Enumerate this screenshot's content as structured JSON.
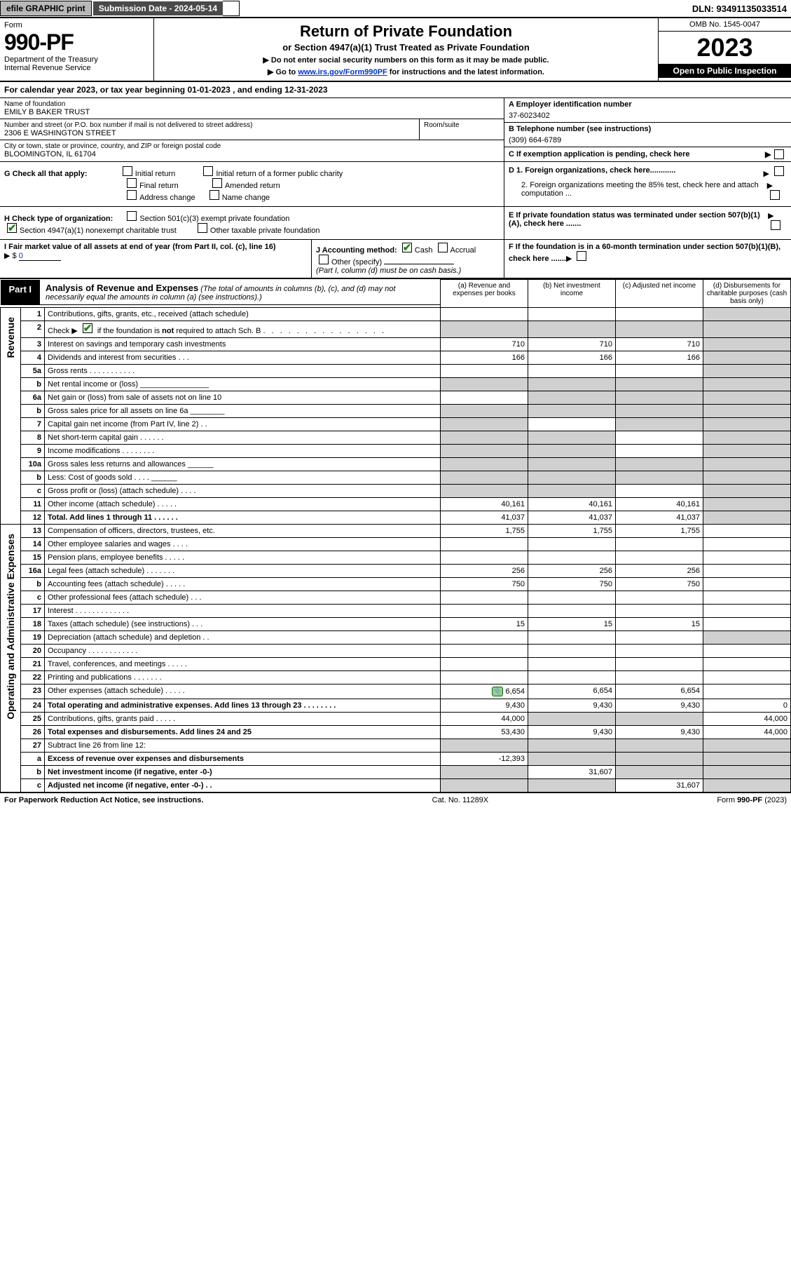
{
  "topbar": {
    "efile_label": "efile GRAPHIC print",
    "submission_label": "Submission Date - 2024-05-14",
    "dln": "DLN: 93491135033514"
  },
  "header": {
    "form_word": "Form",
    "form_number": "990-PF",
    "dept": "Department of the Treasury",
    "irs": "Internal Revenue Service",
    "title": "Return of Private Foundation",
    "subtitle": "or Section 4947(a)(1) Trust Treated as Private Foundation",
    "instr1": "▶ Do not enter social security numbers on this form as it may be made public.",
    "instr2_pre": "▶ Go to ",
    "instr2_link": "www.irs.gov/Form990PF",
    "instr2_post": " for instructions and the latest information.",
    "omb": "OMB No. 1545-0047",
    "year": "2023",
    "open_public": "Open to Public Inspection"
  },
  "calyear": "For calendar year 2023, or tax year beginning 01-01-2023                          , and ending 12-31-2023",
  "entity": {
    "name_lbl": "Name of foundation",
    "name_val": "EMILY B BAKER TRUST",
    "addr_lbl": "Number and street (or P.O. box number if mail is not delivered to street address)",
    "addr_val": "2306 E WASHINGTON STREET",
    "room_lbl": "Room/suite",
    "city_lbl": "City or town, state or province, country, and ZIP or foreign postal code",
    "city_val": "BLOOMINGTON, IL  61704",
    "a_lbl": "A Employer identification number",
    "a_val": "37-6023402",
    "b_lbl": "B Telephone number (see instructions)",
    "b_val": "(309) 664-6789",
    "c_lbl": "C If exemption application is pending, check here"
  },
  "g": {
    "label": "G Check all that apply:",
    "opts": {
      "initial": "Initial return",
      "initial_former": "Initial return of a former public charity",
      "final": "Final return",
      "amended": "Amended return",
      "address": "Address change",
      "name": "Name change"
    }
  },
  "d": {
    "d1": "D 1. Foreign organizations, check here............",
    "d2": "2. Foreign organizations meeting the 85% test, check here and attach computation ..."
  },
  "h": {
    "label": "H Check type of organization:",
    "opt1": "Section 501(c)(3) exempt private foundation",
    "opt2": "Section 4947(a)(1) nonexempt charitable trust",
    "opt3": "Other taxable private foundation"
  },
  "e": "E  If private foundation status was terminated under section 507(b)(1)(A), check here .......",
  "i": {
    "label": "I Fair market value of all assets at end of year (from Part II, col. (c), line 16)",
    "prefix": "▶ $",
    "value": "0"
  },
  "j": {
    "label": "J Accounting method:",
    "cash": "Cash",
    "accrual": "Accrual",
    "other": "Other (specify)",
    "note": "(Part I, column (d) must be on cash basis.)"
  },
  "f": "F  If the foundation is in a 60-month termination under section 507(b)(1)(B), check here .......",
  "part1": {
    "label": "Part I",
    "title": "Analysis of Revenue and Expenses",
    "title_note": "(The total of amounts in columns (b), (c), and (d) may not necessarily equal the amounts in column (a) (see instructions).)",
    "cols": {
      "a": "(a)   Revenue and expenses per books",
      "b": "(b)   Net investment income",
      "c": "(c)   Adjusted net income",
      "d": "(d)   Disbursements for charitable purposes (cash basis only)"
    },
    "side_rev": "Revenue",
    "side_exp": "Operating and Administrative Expenses"
  },
  "rows": [
    {
      "n": "1",
      "desc": "Contributions, gifts, grants, etc., received (attach schedule)",
      "a": "",
      "b": "",
      "c": "",
      "d": "",
      "shade_d": true
    },
    {
      "n": "2",
      "desc": "Check ▶ ☑ if the foundation is not required to attach Sch. B   .   .   .   .   .   .   .   .   .   .   .   .   .   .   .",
      "a": "s",
      "b": "s",
      "c": "s",
      "d": "s"
    },
    {
      "n": "3",
      "desc": "Interest on savings and temporary cash investments",
      "a": "710",
      "b": "710",
      "c": "710",
      "d": "",
      "shade_d": true
    },
    {
      "n": "4",
      "desc": "Dividends and interest from securities   .   .   .",
      "a": "166",
      "b": "166",
      "c": "166",
      "d": "",
      "shade_d": true
    },
    {
      "n": "5a",
      "desc": "Gross rents   .   .   .   .   .   .   .   .   .   .   .",
      "a": "",
      "b": "",
      "c": "",
      "d": "",
      "shade_d": true
    },
    {
      "n": "b",
      "desc": "Net rental income or (loss)  ________________",
      "a": "s",
      "b": "s",
      "c": "s",
      "d": "s"
    },
    {
      "n": "6a",
      "desc": "Net gain or (loss) from sale of assets not on line 10",
      "a": "",
      "b": "s",
      "c": "s",
      "d": "s",
      "shade_bcd": true
    },
    {
      "n": "b",
      "desc": "Gross sales price for all assets on line 6a ________",
      "a": "s",
      "b": "s",
      "c": "s",
      "d": "s"
    },
    {
      "n": "7",
      "desc": "Capital gain net income (from Part IV, line 2)   .   .",
      "a": "s",
      "b": "",
      "c": "s",
      "d": "s",
      "shade_a": true,
      "shade_cd": true
    },
    {
      "n": "8",
      "desc": "Net short-term capital gain   .   .   .   .   .   .",
      "a": "s",
      "b": "s",
      "c": "",
      "d": "s",
      "shade_ab": true,
      "shade_d": true
    },
    {
      "n": "9",
      "desc": "Income modifications   .   .   .   .   .   .   .   .",
      "a": "s",
      "b": "s",
      "c": "",
      "d": "s",
      "shade_ab": true,
      "shade_d": true
    },
    {
      "n": "10a",
      "desc": "Gross sales less returns and allowances   ______",
      "a": "s",
      "b": "s",
      "c": "s",
      "d": "s"
    },
    {
      "n": "b",
      "desc": "Less: Cost of goods sold   .   .   .   .   ______",
      "a": "s",
      "b": "s",
      "c": "s",
      "d": "s"
    },
    {
      "n": "c",
      "desc": "Gross profit or (loss) (attach schedule)   .   .   .   .",
      "a": "s",
      "b": "s",
      "c": "",
      "d": "s",
      "shade_ab": true,
      "shade_d": true
    },
    {
      "n": "11",
      "desc": "Other income (attach schedule)   .   .   .   .   .",
      "a": "40,161",
      "b": "40,161",
      "c": "40,161",
      "d": "",
      "shade_d": true
    },
    {
      "n": "12",
      "desc": "Total. Add lines 1 through 11   .   .   .   .   .   .",
      "bold": true,
      "a": "41,037",
      "b": "41,037",
      "c": "41,037",
      "d": "",
      "shade_d": true
    },
    {
      "n": "13",
      "desc": "Compensation of officers, directors, trustees, etc.",
      "a": "1,755",
      "b": "1,755",
      "c": "1,755",
      "d": ""
    },
    {
      "n": "14",
      "desc": "Other employee salaries and wages   .   .   .   .",
      "a": "",
      "b": "",
      "c": "",
      "d": ""
    },
    {
      "n": "15",
      "desc": "Pension plans, employee benefits   .   .   .   .   .",
      "a": "",
      "b": "",
      "c": "",
      "d": ""
    },
    {
      "n": "16a",
      "desc": "Legal fees (attach schedule)   .   .   .   .   .   .   .",
      "a": "256",
      "b": "256",
      "c": "256",
      "d": ""
    },
    {
      "n": "b",
      "desc": "Accounting fees (attach schedule)   .   .   .   .   .",
      "a": "750",
      "b": "750",
      "c": "750",
      "d": ""
    },
    {
      "n": "c",
      "desc": "Other professional fees (attach schedule)   .   .   .",
      "a": "",
      "b": "",
      "c": "",
      "d": ""
    },
    {
      "n": "17",
      "desc": "Interest   .   .   .   .   .   .   .   .   .   .   .   .   .",
      "a": "",
      "b": "",
      "c": "",
      "d": ""
    },
    {
      "n": "18",
      "desc": "Taxes (attach schedule) (see instructions)   .   .   .",
      "a": "15",
      "b": "15",
      "c": "15",
      "d": ""
    },
    {
      "n": "19",
      "desc": "Depreciation (attach schedule) and depletion   .   .",
      "a": "",
      "b": "",
      "c": "",
      "d": "",
      "shade_d": true
    },
    {
      "n": "20",
      "desc": "Occupancy   .   .   .   .   .   .   .   .   .   .   .   .",
      "a": "",
      "b": "",
      "c": "",
      "d": ""
    },
    {
      "n": "21",
      "desc": "Travel, conferences, and meetings   .   .   .   .   .",
      "a": "",
      "b": "",
      "c": "",
      "d": ""
    },
    {
      "n": "22",
      "desc": "Printing and publications   .   .   .   .   .   .   .",
      "a": "",
      "b": "",
      "c": "",
      "d": ""
    },
    {
      "n": "23",
      "desc": "Other expenses (attach schedule)   .   .   .   .   .",
      "icon": true,
      "a": "6,654",
      "b": "6,654",
      "c": "6,654",
      "d": ""
    },
    {
      "n": "24",
      "desc": "Total operating and administrative expenses. Add lines 13 through 23   .   .   .   .   .   .   .   .",
      "bold": true,
      "a": "9,430",
      "b": "9,430",
      "c": "9,430",
      "d": "0"
    },
    {
      "n": "25",
      "desc": "Contributions, gifts, grants paid   .   .   .   .   .",
      "a": "44,000",
      "b": "",
      "c": "",
      "d": "44,000",
      "shade_bc": true
    },
    {
      "n": "26",
      "desc": "Total expenses and disbursements. Add lines 24 and 25",
      "bold": true,
      "a": "53,430",
      "b": "9,430",
      "c": "9,430",
      "d": "44,000"
    },
    {
      "n": "27",
      "desc": "Subtract line 26 from line 12:",
      "a": "s",
      "b": "s",
      "c": "s",
      "d": "s",
      "shade_all": true
    },
    {
      "n": "a",
      "desc": "Excess of revenue over expenses and disbursements",
      "bold": true,
      "a": "-12,393",
      "b": "",
      "c": "",
      "d": "",
      "shade_bcd": true
    },
    {
      "n": "b",
      "desc": "Net investment income (if negative, enter -0-)",
      "bold": true,
      "a": "",
      "b": "31,607",
      "c": "",
      "d": "",
      "shade_a": true,
      "shade_cd": true
    },
    {
      "n": "c",
      "desc": "Adjusted net income (if negative, enter -0-)   .   .",
      "bold": true,
      "a": "",
      "b": "",
      "c": "31,607",
      "d": "",
      "shade_ab": true,
      "shade_d": true
    }
  ],
  "footer": {
    "left": "For Paperwork Reduction Act Notice, see instructions.",
    "mid": "Cat. No. 11289X",
    "right": "Form 990-PF (2023)"
  },
  "colors": {
    "topbar_btn_bg": "#b8b8b8",
    "topbar_lbl_bg": "#4a4a4a",
    "shade_bg": "#d0d0d0",
    "link": "#0033cc",
    "check_green": "#1a8a1a"
  }
}
